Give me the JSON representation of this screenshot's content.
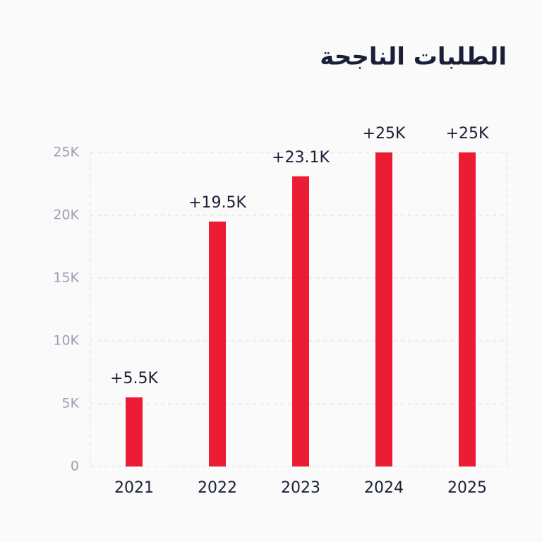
{
  "chart_data": {
    "type": "bar",
    "title": "الطلبات الناجحة",
    "categories": [
      "2021",
      "2022",
      "2023",
      "2024",
      "2025"
    ],
    "values": [
      5500,
      19500,
      23100,
      25000,
      25000
    ],
    "value_labels": [
      "+5.5K",
      "+19.5K",
      "+23.1K",
      "+25K",
      "+25K"
    ],
    "color": "#ec1c35",
    "ylim": [
      0,
      25000
    ],
    "yticks": [
      0,
      {
        "value": 5000,
        "label": "5K"
      },
      {
        "value": 10000,
        "label": "10K"
      },
      {
        "value": 15000,
        "label": "15K"
      },
      {
        "value": 20000,
        "label": "20K"
      },
      {
        "value": 25000,
        "label": "25K"
      }
    ],
    "grid": true
  }
}
